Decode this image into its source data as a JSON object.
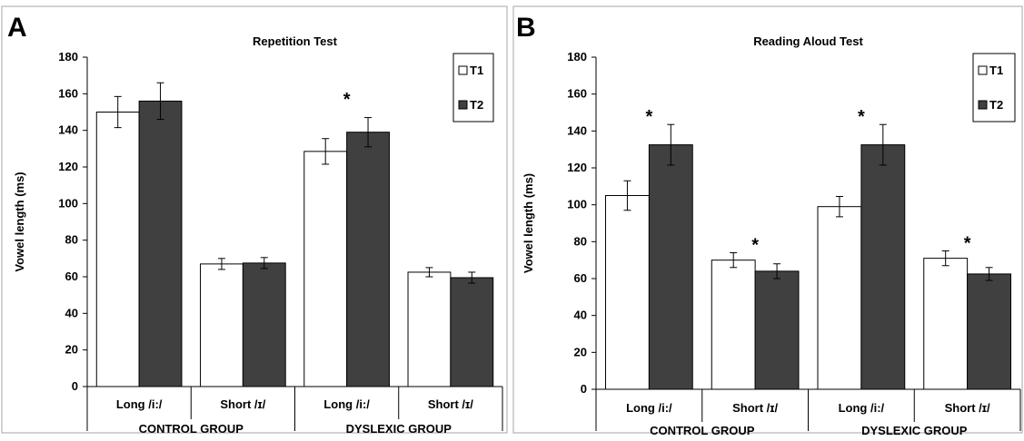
{
  "colors": {
    "T1": "#ffffff",
    "T2": "#404040",
    "stroke": "#000000",
    "frame": "#a6a6a6"
  },
  "chart_data": [
    {
      "panel_label": "A",
      "type": "bar",
      "title": "Repetition Test",
      "ylabel": "Vowel length (ms)",
      "ylim": [
        0,
        180
      ],
      "yticks": [
        0,
        20,
        40,
        60,
        80,
        100,
        120,
        140,
        160,
        180
      ],
      "categories": [
        "Long /i:/",
        "Short /ɪ/",
        "Long /i:/",
        "Short /ɪ/"
      ],
      "groups": [
        {
          "label": "CONTROL GROUP",
          "categories": [
            0,
            1
          ]
        },
        {
          "label": "DYSLEXIC GROUP",
          "categories": [
            2,
            3
          ]
        }
      ],
      "series": [
        {
          "name": "T1",
          "values": [
            150,
            67,
            128.5,
            62.5
          ],
          "errors": [
            8.5,
            3,
            7,
            2.5
          ]
        },
        {
          "name": "T2",
          "values": [
            156,
            67.5,
            139,
            59.5
          ],
          "errors": [
            10,
            3,
            8,
            3
          ]
        }
      ],
      "significance": [
        {
          "category": 2,
          "label": "*"
        }
      ],
      "legend": {
        "position": "top-right",
        "entries": [
          "T1",
          "T2"
        ]
      },
      "grid": false
    },
    {
      "panel_label": "B",
      "type": "bar",
      "title": "Reading Aloud Test",
      "ylabel": "Vowel length (ms)",
      "ylim": [
        0,
        180
      ],
      "yticks": [
        0,
        20,
        40,
        60,
        80,
        100,
        120,
        140,
        160,
        180
      ],
      "categories": [
        "Long /i:/",
        "Short /ɪ/",
        "Long /i:/",
        "Short /ɪ/"
      ],
      "groups": [
        {
          "label": "CONTROL GROUP",
          "categories": [
            0,
            1
          ]
        },
        {
          "label": "DYSLEXIC GROUP",
          "categories": [
            2,
            3
          ]
        }
      ],
      "series": [
        {
          "name": "T1",
          "values": [
            105,
            70,
            99,
            71
          ],
          "errors": [
            8,
            4,
            5.5,
            4
          ]
        },
        {
          "name": "T2",
          "values": [
            132.5,
            64,
            132.5,
            62.5
          ],
          "errors": [
            11,
            4,
            11,
            3.5
          ]
        }
      ],
      "significance": [
        {
          "category": 0,
          "label": "*"
        },
        {
          "category": 1,
          "label": "*"
        },
        {
          "category": 2,
          "label": "*"
        },
        {
          "category": 3,
          "label": "*"
        }
      ],
      "legend": {
        "position": "top-right",
        "entries": [
          "T1",
          "T2"
        ]
      },
      "grid": false
    }
  ]
}
